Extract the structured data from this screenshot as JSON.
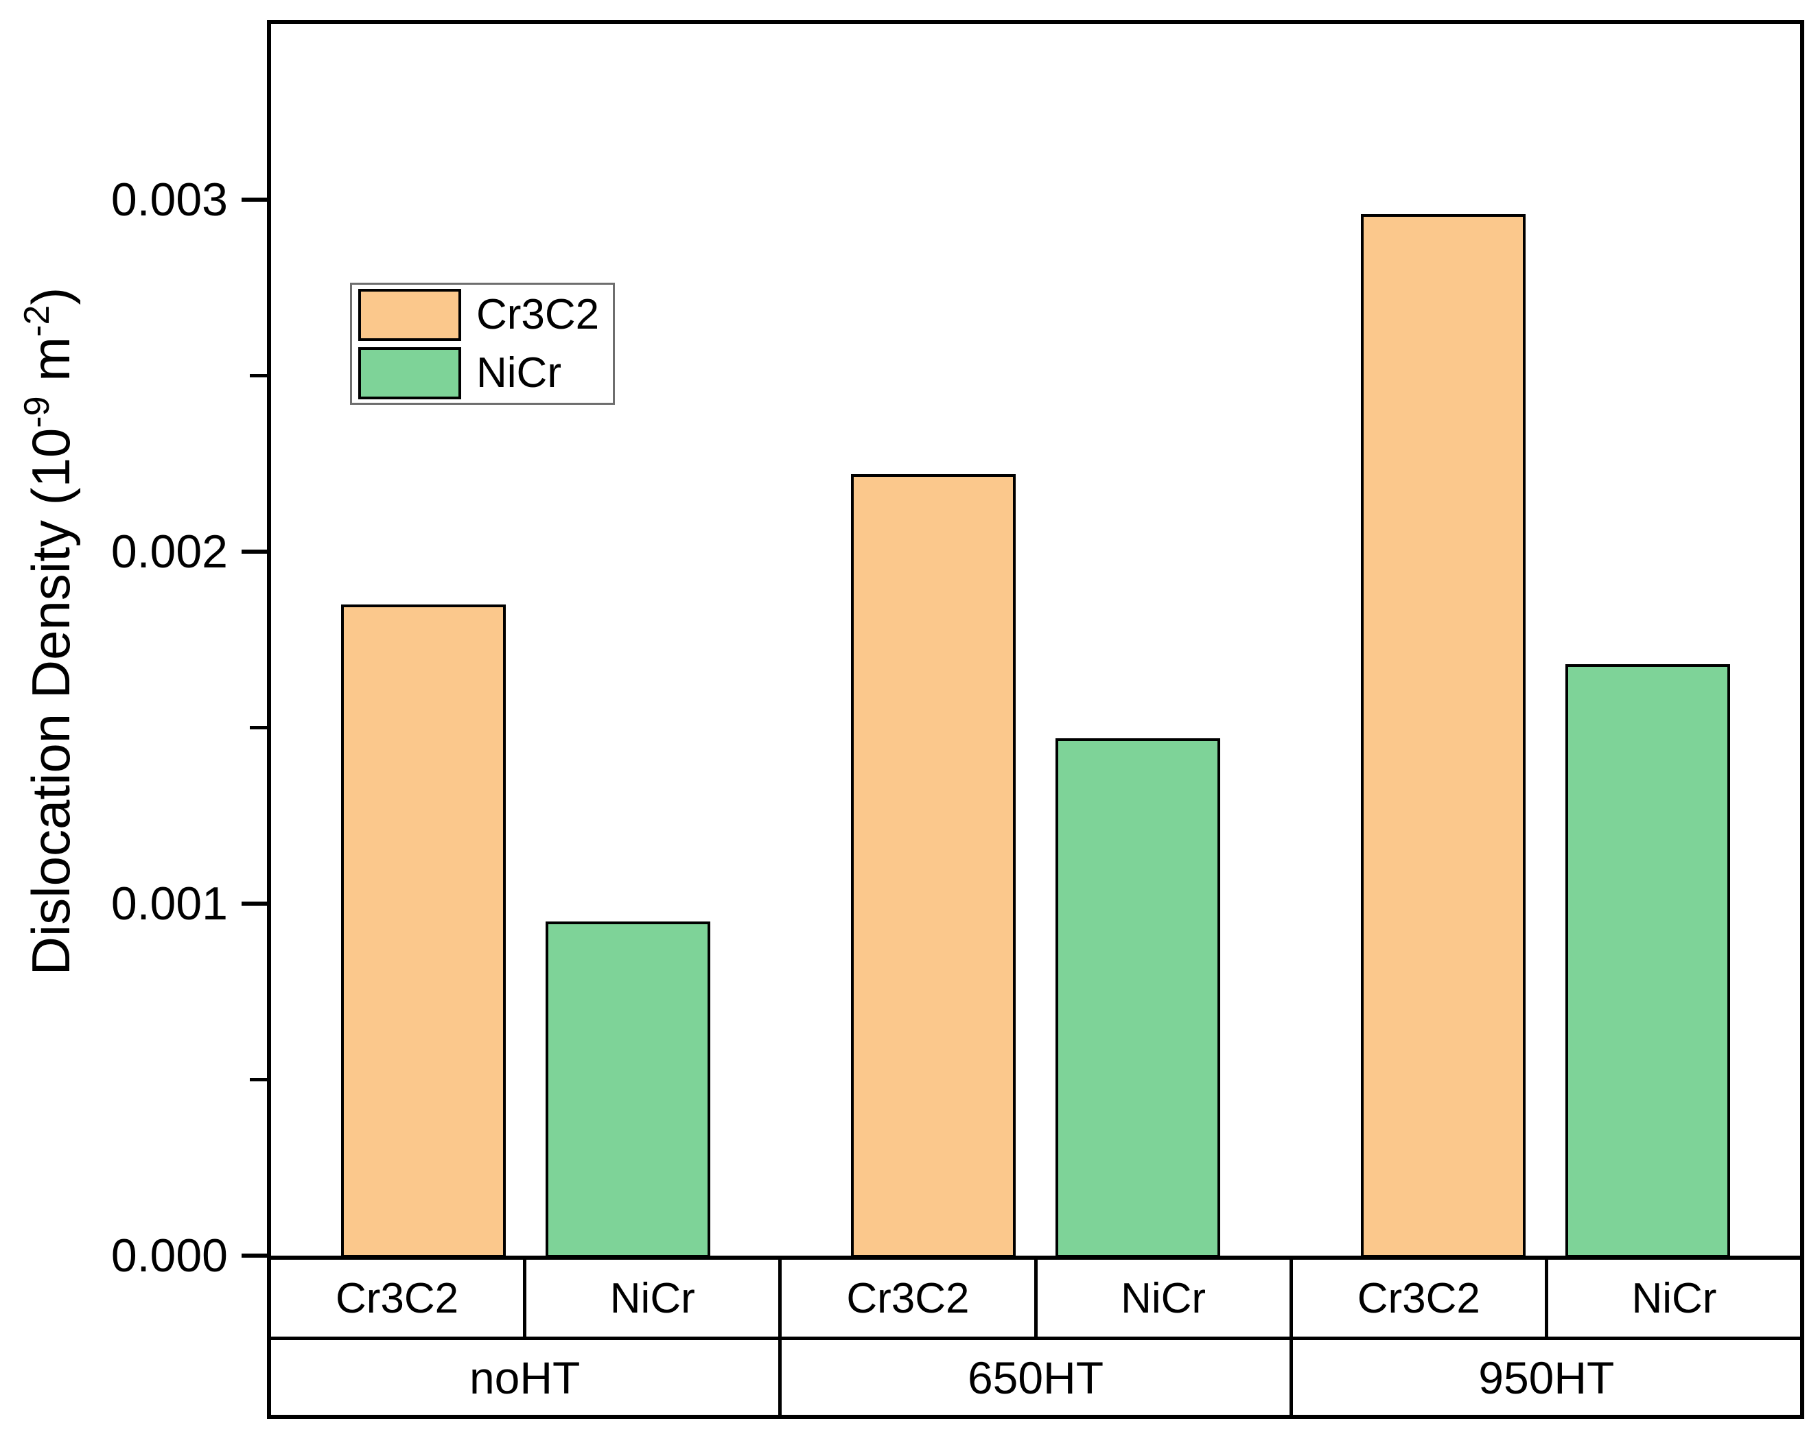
{
  "figure": {
    "y_axis_label_parts": {
      "prefix": "Dislocation Density (10",
      "sup1": "-9",
      "mid": " m",
      "sup2": "-2",
      "suffix": ")"
    }
  },
  "chart_data": {
    "type": "bar",
    "title": "",
    "xlabel": "",
    "ylabel": "Dislocation Density (10^-9 m^-2)",
    "ylim": [
      0,
      0.0035
    ],
    "y_major_ticks": [
      0,
      0.001,
      0.002,
      0.003
    ],
    "y_tick_labels": [
      "0.000",
      "0.001",
      "0.002",
      "0.003"
    ],
    "y_minor_tick_step": 0.0005,
    "grid": false,
    "legend": {
      "position": "upper-left-inside",
      "entries": [
        "Cr3C2",
        "NiCr"
      ]
    },
    "categories": [
      "noHT",
      "650HT",
      "950HT"
    ],
    "x_cell_labels": [
      "Cr3C2",
      "NiCr",
      "Cr3C2",
      "NiCr",
      "Cr3C2",
      "NiCr"
    ],
    "series": [
      {
        "name": "Cr3C2",
        "color": "#FBC88C",
        "values": [
          0.00185,
          0.00222,
          0.00296
        ]
      },
      {
        "name": "NiCr",
        "color": "#7ED398",
        "values": [
          0.00095,
          0.00147,
          0.00168
        ]
      }
    ]
  }
}
